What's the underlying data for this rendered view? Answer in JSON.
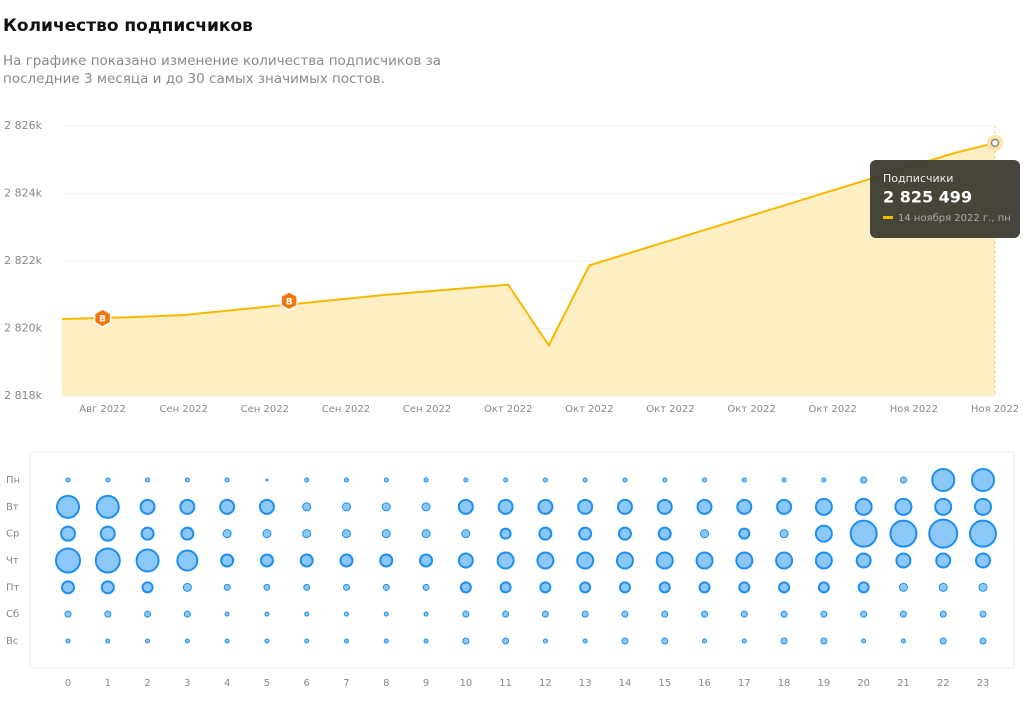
{
  "header": {
    "title": "Количество подписчиков",
    "subtitle": [
      "На графике показано изменение количества подписчиков за",
      "последние 3 месяца и до 30 самых значимых постов."
    ]
  },
  "chart_data": [
    {
      "type": "area",
      "categories": [
        null,
        "Авг 2022",
        null,
        "Сен 2022",
        null,
        "Сен 2022",
        null,
        "Сен 2022",
        null,
        "Сен 2022",
        null,
        "Окт 2022",
        null,
        "Окт 2022",
        null,
        "Окт 2022",
        null,
        "Окт 2022",
        null,
        "Окт 2022",
        null,
        "Ноя 2022",
        null,
        "Ноя 2022"
      ],
      "series": [
        {
          "name": "Подписчики",
          "color": "#f7b900",
          "values": [
            2820280,
            2820310,
            2820350,
            2820400,
            2820520,
            2820640,
            2820760,
            2820880,
            2821000,
            2821100,
            2821200,
            2821300,
            2819500,
            2821870,
            2822240,
            2822610,
            2822980,
            2823350,
            2823720,
            2824090,
            2824460,
            2824830,
            2825200,
            2825499
          ],
          "value_labels": [
            null,
            null,
            null,
            null,
            null,
            null,
            null,
            null,
            null,
            null,
            null,
            null,
            null,
            null,
            null,
            null,
            null,
            null,
            null,
            null,
            null,
            null,
            null,
            "2 825 499"
          ]
        }
      ],
      "ylim": [
        2818000,
        2826000
      ],
      "yticks": [
        {
          "value": 2818000,
          "label": "2 818k"
        },
        {
          "value": 2820000,
          "label": "2 820k"
        },
        {
          "value": 2822000,
          "label": "2 822k"
        },
        {
          "value": 2824000,
          "label": "2 824k"
        },
        {
          "value": 2826000,
          "label": "2 826k"
        }
      ],
      "grid": true,
      "annotations": [
        "B",
        "B"
      ],
      "tooltip": {
        "title": "Подписчики",
        "date": "14 ноября 2022 г., пн"
      }
    },
    {
      "type": "bubble_grid",
      "color": "#8cc8f7",
      "x_categories": [
        "0",
        "1",
        "2",
        "3",
        "4",
        "5",
        "6",
        "7",
        "8",
        "9",
        "10",
        "11",
        "12",
        "13",
        "14",
        "15",
        "16",
        "17",
        "18",
        "19",
        "20",
        "21",
        "22",
        "23"
      ],
      "y_categories": [
        "Пн",
        "Вт",
        "Ср",
        "Чт",
        "Пт",
        "Сб",
        "Вс"
      ],
      "values": [
        [
          2,
          2,
          2,
          2,
          2,
          1,
          2,
          2,
          2,
          2,
          2,
          2,
          2,
          2,
          2,
          2,
          2,
          2,
          2,
          2,
          3,
          3,
          11,
          11
        ],
        [
          11,
          11,
          7,
          7,
          7,
          7,
          4,
          4,
          4,
          4,
          7,
          7,
          7,
          7,
          7,
          7,
          7,
          7,
          7,
          8,
          8,
          8,
          8,
          8
        ],
        [
          7,
          7,
          6,
          6,
          4,
          4,
          4,
          4,
          4,
          4,
          4,
          5,
          6,
          6,
          6,
          6,
          4,
          5,
          4,
          8,
          13,
          13,
          14,
          13
        ],
        [
          12,
          12,
          11,
          10,
          6,
          6,
          6,
          6,
          6,
          6,
          7,
          8,
          8,
          8,
          8,
          8,
          8,
          8,
          8,
          8,
          7,
          7,
          7,
          7
        ],
        [
          6,
          6,
          5,
          4,
          3,
          3,
          3,
          3,
          3,
          3,
          5,
          5,
          5,
          5,
          5,
          5,
          5,
          5,
          5,
          5,
          5,
          4,
          4,
          4
        ],
        [
          3,
          3,
          3,
          3,
          2,
          2,
          2,
          2,
          2,
          2,
          3,
          3,
          3,
          3,
          3,
          3,
          3,
          3,
          3,
          3,
          3,
          3,
          3,
          3
        ],
        [
          2,
          2,
          2,
          2,
          2,
          2,
          2,
          2,
          2,
          2,
          3,
          3,
          2,
          2,
          3,
          3,
          2,
          2,
          3,
          3,
          2,
          2,
          3,
          3
        ]
      ]
    }
  ]
}
